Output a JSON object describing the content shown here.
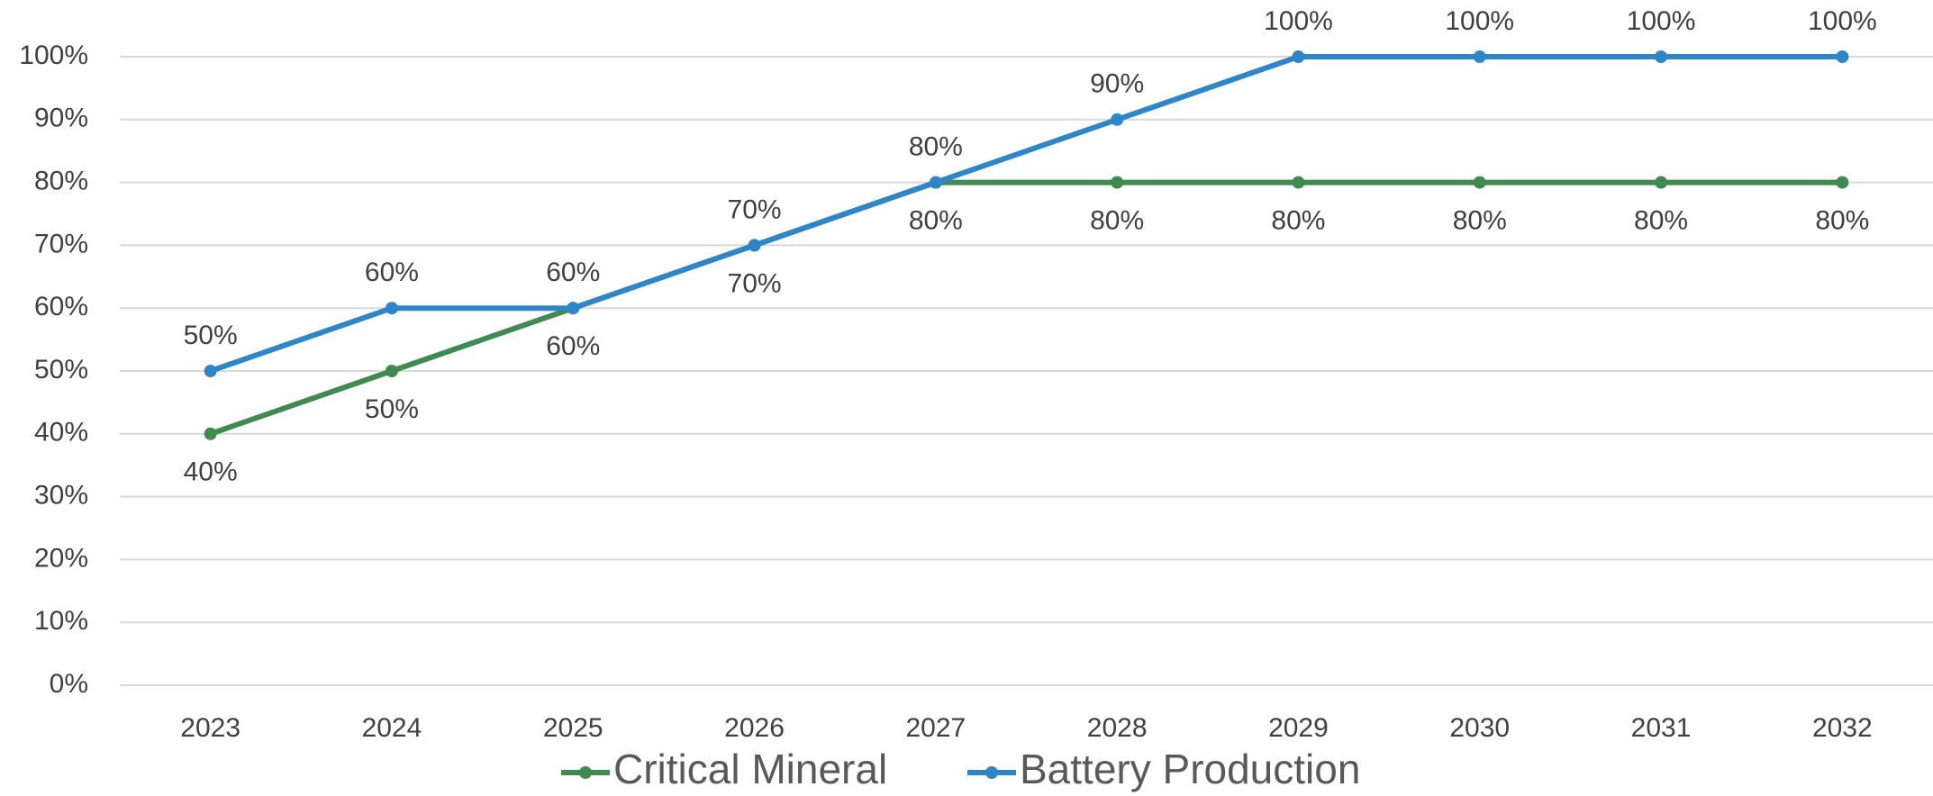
{
  "chart_data": {
    "type": "line",
    "categories": [
      "2023",
      "2024",
      "2025",
      "2026",
      "2027",
      "2028",
      "2029",
      "2030",
      "2031",
      "2032"
    ],
    "series": [
      {
        "name": "Critical Mineral",
        "color": "#3f8a4f",
        "values": [
          40,
          50,
          60,
          70,
          80,
          80,
          80,
          80,
          80,
          80
        ],
        "value_labels": [
          "40%",
          "50%",
          "60%",
          "70%",
          "80%",
          "80%",
          "80%",
          "80%",
          "80%",
          "80%"
        ]
      },
      {
        "name": "Battery Production",
        "color": "#2e86c8",
        "values": [
          50,
          60,
          60,
          70,
          80,
          90,
          100,
          100,
          100,
          100
        ],
        "value_labels": [
          "50%",
          "60%",
          "60%",
          "70%",
          "80%",
          "90%",
          "100%",
          "100%",
          "100%",
          "100%"
        ]
      }
    ],
    "ylim": [
      0,
      100
    ],
    "yticks": [
      {
        "value": 0,
        "label": "0%"
      },
      {
        "value": 10,
        "label": "10%"
      },
      {
        "value": 20,
        "label": "20%"
      },
      {
        "value": 30,
        "label": "30%"
      },
      {
        "value": 40,
        "label": "40%"
      },
      {
        "value": 50,
        "label": "50%"
      },
      {
        "value": 60,
        "label": "60%"
      },
      {
        "value": 70,
        "label": "70%"
      },
      {
        "value": 80,
        "label": "80%"
      },
      {
        "value": 90,
        "label": "90%"
      },
      {
        "value": 100,
        "label": "100%"
      }
    ],
    "grid": true,
    "legend": "bottom"
  }
}
